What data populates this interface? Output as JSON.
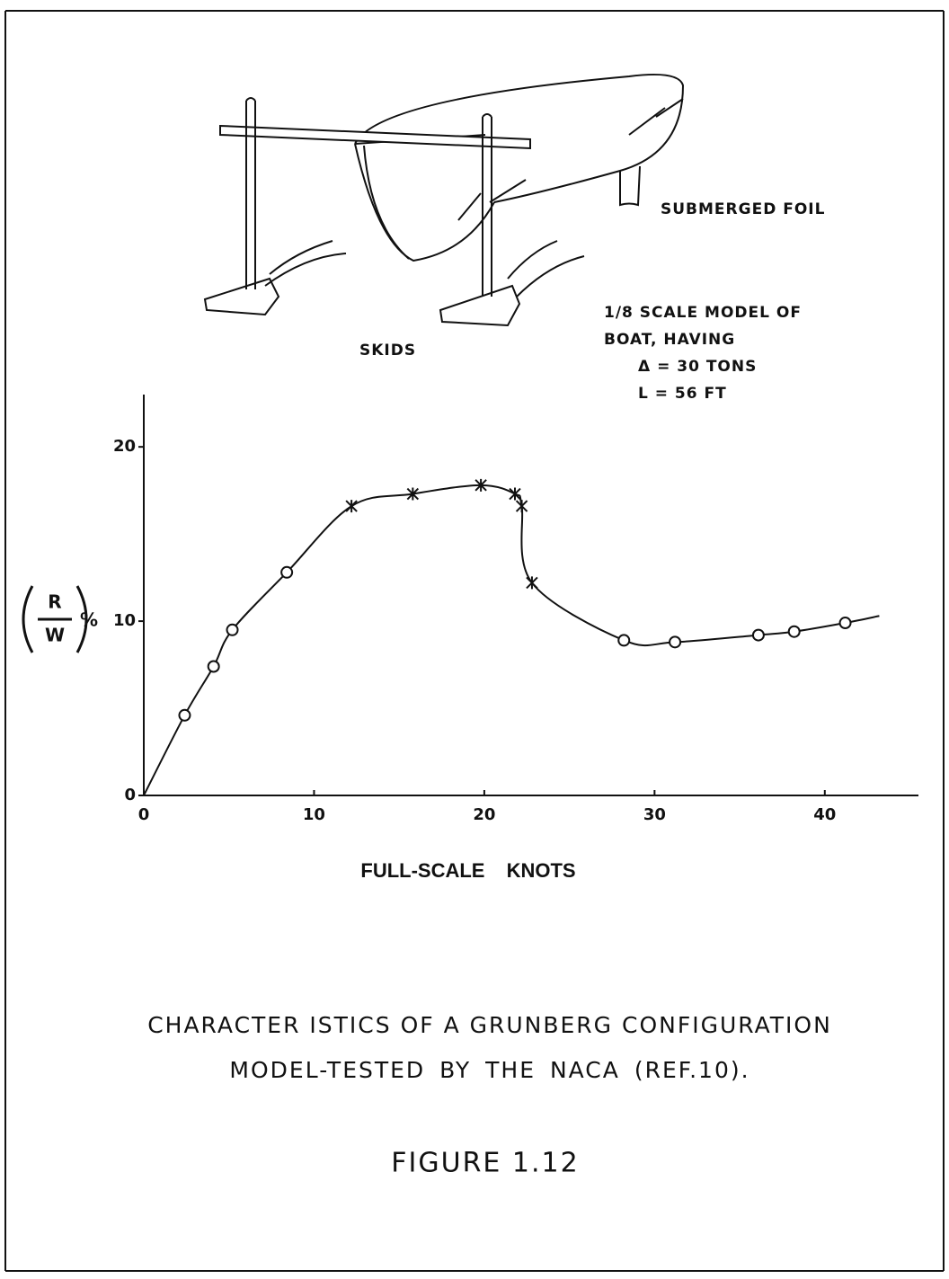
{
  "chart_data": {
    "type": "line",
    "xlabel": "FULL-SCALE KNOTS",
    "ylabel": {
      "numerator": "R",
      "denominator": "W",
      "suffix": "%"
    },
    "xlim": [
      0,
      45.5
    ],
    "ylim": [
      0,
      23
    ],
    "xticks": [
      0,
      10,
      20,
      30,
      40
    ],
    "yticks": [
      0,
      10,
      20
    ],
    "color": "#111111",
    "curve": {
      "x": [
        0,
        2.4,
        4.1,
        5.2,
        8.4,
        12.2,
        15.8,
        19.8,
        21.8,
        22.2,
        22.8,
        28.2,
        31.2,
        36.1,
        38.2,
        41.2,
        43.2
      ],
      "values": [
        0,
        4.6,
        7.4,
        9.5,
        12.8,
        16.6,
        17.3,
        17.8,
        17.3,
        16.6,
        12.2,
        8.9,
        8.8,
        9.2,
        9.4,
        9.9,
        10.3
      ]
    },
    "series": [
      {
        "marker": "circle",
        "x": [
          2.4,
          4.1,
          5.2,
          8.4
        ],
        "values": [
          4.6,
          7.4,
          9.5,
          12.8
        ]
      },
      {
        "marker": "star",
        "x": [
          12.2,
          15.8,
          19.8,
          21.8,
          22.2,
          22.8
        ],
        "values": [
          16.6,
          17.3,
          17.8,
          17.3,
          16.6,
          12.2
        ]
      },
      {
        "marker": "circle",
        "x": [
          28.2,
          31.2,
          36.1,
          38.2,
          41.2
        ],
        "values": [
          8.9,
          8.8,
          9.2,
          9.4,
          9.9
        ]
      }
    ]
  },
  "illustration": {
    "labels": [
      "SUBMERGED FOIL",
      "SKIDS",
      "1/8 SCALE MODEL OF",
      "BOAT, HAVING",
      "Δ = 30 TONS",
      "L = 56 FT"
    ]
  },
  "caption": {
    "lines": [
      "CHARACTER ISTICS OF A GRUNBERG CONFIGURATION",
      "MODEL-TESTED BY THE NACA (REF.10)."
    ]
  },
  "figure_number": "FIGURE 1.12"
}
